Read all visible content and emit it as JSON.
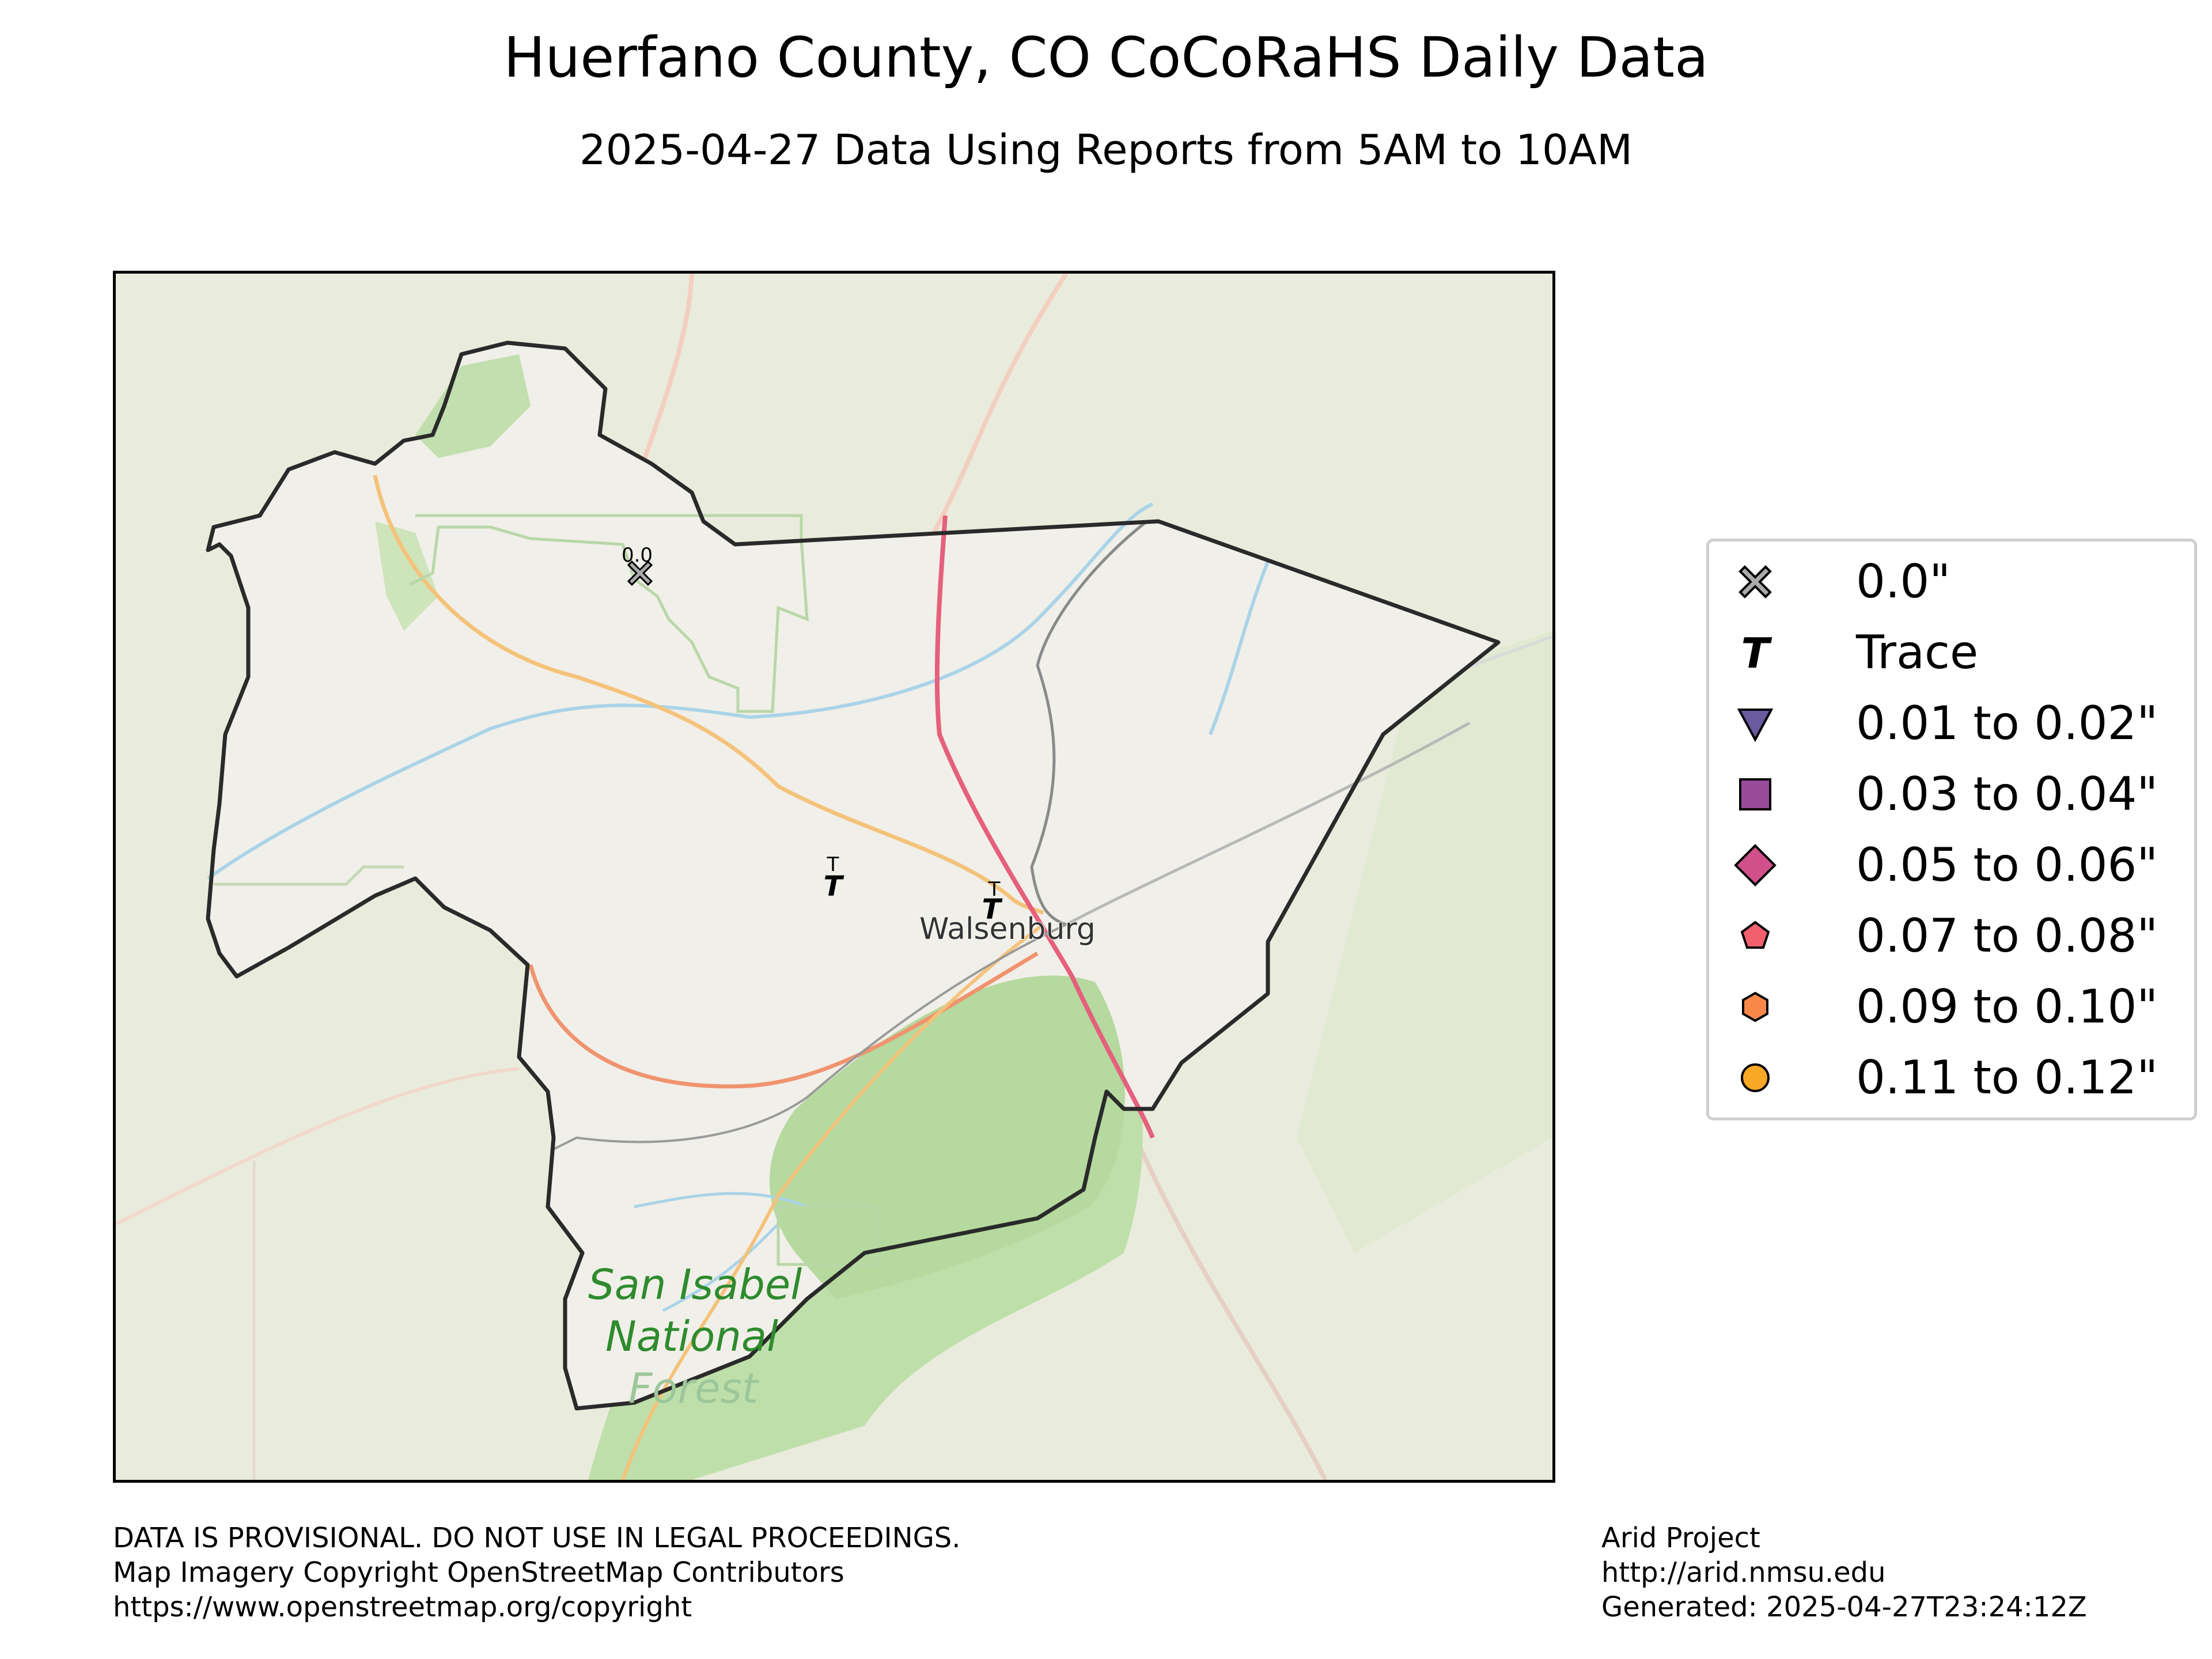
{
  "title": "Huerfano County, CO CoCoRaHS Daily Data",
  "subtitle": "2025-04-27 Data Using Reports from 5AM to 10AM",
  "map": {
    "place_labels": {
      "town": "Walsenburg",
      "forest": [
        "San Isabel",
        "National",
        "Forest"
      ]
    },
    "stations": [
      {
        "label": "0.0",
        "category": "0.0\"",
        "marker": "x-cross-icon"
      },
      {
        "label": "T",
        "category": "Trace",
        "marker": "t-icon"
      },
      {
        "label": "T",
        "category": "Trace",
        "marker": "t-icon"
      }
    ],
    "colors": {
      "basemap_land": "#e9ecdc",
      "county_fill": "#f1efe9",
      "county_border": "#2a2a2a",
      "forest_green": "#9fd08e",
      "water": "#a9d3e8",
      "highway_pink": "#e5607c",
      "road_orange": "#f4c27a",
      "road_red": "#f0936f",
      "railroad_gray": "#8a8a8a",
      "forest_label_green": "#2e8b2e"
    }
  },
  "legend": {
    "items": [
      {
        "label": "0.0\"",
        "icon": "x-cross-icon",
        "color": "#aaaaaa"
      },
      {
        "label": "Trace",
        "icon": "t-icon",
        "color": "#000000"
      },
      {
        "label": "0.01 to 0.02\"",
        "icon": "triangle-down-icon",
        "color": "#6a5aa0"
      },
      {
        "label": "0.03 to 0.04\"",
        "icon": "square-icon",
        "color": "#9a4a9a"
      },
      {
        "label": "0.05 to 0.06\"",
        "icon": "diamond-icon",
        "color": "#d0508a"
      },
      {
        "label": "0.07 to 0.08\"",
        "icon": "pentagon-icon",
        "color": "#f26070"
      },
      {
        "label": "0.09 to 0.10\"",
        "icon": "hexagon-icon",
        "color": "#f7884a"
      },
      {
        "label": "0.11 to 0.12\"",
        "icon": "circle-icon",
        "color": "#f9a825"
      }
    ]
  },
  "footer_left": [
    "DATA IS PROVISIONAL. DO NOT USE IN LEGAL PROCEEDINGS.",
    "Map Imagery Copyright OpenStreetMap Contributors",
    "https://www.openstreetmap.org/copyright"
  ],
  "footer_right": [
    "Arid Project",
    "http://arid.nmsu.edu",
    "Generated: 2025-04-27T23:24:12Z"
  ]
}
